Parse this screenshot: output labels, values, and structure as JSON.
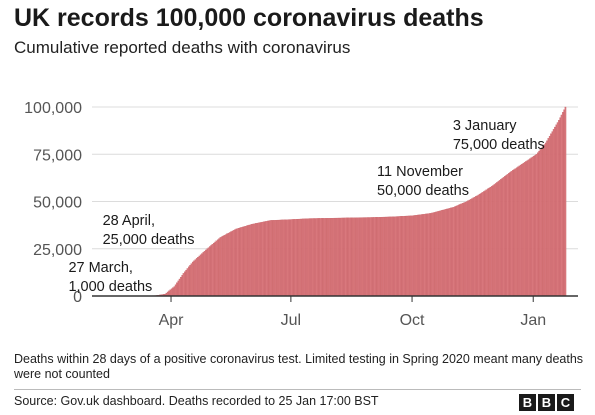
{
  "header": {
    "title": "UK records 100,000 coronavirus deaths",
    "subtitle": "Cumulative reported deaths with coronavirus"
  },
  "footer": {
    "note": "Deaths within 28 days of a positive coronavirus test. Limited testing in Spring 2020 meant many deaths were not counted",
    "source": "Source: Gov.uk dashboard. Deaths recorded to 25 Jan 17:00 BST",
    "logo_letters": [
      "B",
      "B",
      "C"
    ]
  },
  "chart_data": {
    "type": "bar",
    "title": "UK records 100,000 coronavirus deaths",
    "subtitle": "Cumulative reported deaths with coronavirus",
    "xlabel": "",
    "ylabel": "",
    "ylim": [
      0,
      100000
    ],
    "xlim": [
      "2020-02-01",
      "2021-02-04"
    ],
    "y_ticks": [
      0,
      25000,
      50000,
      75000,
      100000
    ],
    "y_tick_labels": [
      "0",
      "25,000",
      "50,000",
      "75,000",
      "100,000"
    ],
    "x_ticks": [
      "2020-04-01",
      "2020-07-01",
      "2020-10-01",
      "2021-01-01"
    ],
    "x_tick_labels": [
      "Apr",
      "Jul",
      "Oct",
      "Jan"
    ],
    "grid": "horizontal",
    "bar_color": "#d9787d",
    "bar_edge_color": "#c1545a",
    "series": [
      {
        "x": [
          "2020-03-06",
          "2020-03-20",
          "2020-03-27",
          "2020-04-03",
          "2020-04-10",
          "2020-04-17",
          "2020-04-28",
          "2020-05-08",
          "2020-05-20",
          "2020-06-01",
          "2020-06-15",
          "2020-07-01",
          "2020-07-15",
          "2020-08-01",
          "2020-08-15",
          "2020-09-01",
          "2020-09-15",
          "2020-10-01",
          "2020-10-15",
          "2020-11-01",
          "2020-11-11",
          "2020-11-20",
          "2020-12-01",
          "2020-12-15",
          "2021-01-03",
          "2021-01-10",
          "2021-01-15",
          "2021-01-20",
          "2021-01-25"
        ],
        "values": [
          0,
          250,
          1000,
          5000,
          12000,
          18000,
          25000,
          31000,
          35500,
          38000,
          40000,
          40500,
          41000,
          41200,
          41400,
          41600,
          41900,
          42500,
          43800,
          47000,
          50000,
          53500,
          58500,
          66000,
          75000,
          81000,
          87000,
          93000,
          100000
        ]
      }
    ],
    "annotations": [
      {
        "date": "2020-03-27",
        "value": 1000,
        "lines": [
          "27 March,",
          "1,000 deaths"
        ]
      },
      {
        "date": "2020-04-28",
        "value": 25000,
        "lines": [
          "28 April,",
          "25,000 deaths"
        ]
      },
      {
        "date": "2020-11-11",
        "value": 50000,
        "lines": [
          "11 November",
          "50,000 deaths"
        ]
      },
      {
        "date": "2021-01-03",
        "value": 75000,
        "lines": [
          "3 January",
          "75,000 deaths"
        ]
      }
    ]
  }
}
